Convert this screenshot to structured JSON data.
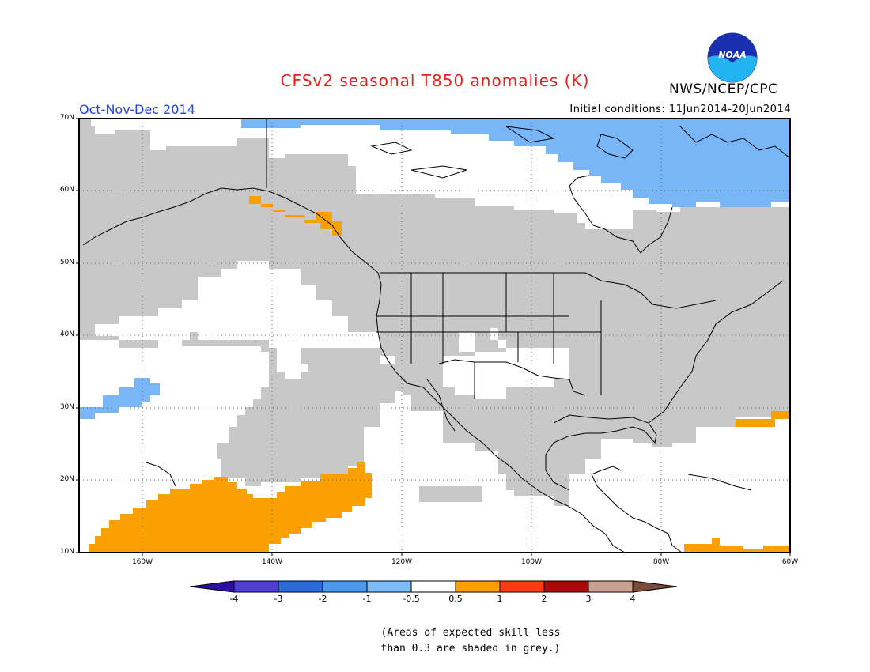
{
  "title": "CFSv2 seasonal T850 anomalies (K)",
  "season": "Oct-Nov-Dec 2014",
  "initial_conditions": "Initial conditions: 11Jun2014-20Jun2014",
  "agency": "NWS/NCEP/CPC",
  "logo_text": "NOAA",
  "lat_labels": [
    "70N",
    "60N",
    "50N",
    "40N",
    "30N",
    "20N",
    "10N"
  ],
  "lon_labels": [
    "160W",
    "140W",
    "120W",
    "100W",
    "80W",
    "60W"
  ],
  "colorbar": {
    "ticks": [
      "-4",
      "-3",
      "-2",
      "-1",
      "-0.5",
      "0.5",
      "1",
      "2",
      "3",
      "4"
    ],
    "colors": [
      "#2b0fa0",
      "#4e3fd0",
      "#2a6bd8",
      "#4b98ee",
      "#7dbcf6",
      "#ffffff",
      "#fba002",
      "#fb3c10",
      "#a80808",
      "#c8a090",
      "#7a4a3a"
    ]
  },
  "note_line1": "(Areas of expected skill less",
  "note_line2": "than 0.3 are shaded in grey.)",
  "colors": {
    "grey_skill": "#c8c8c8",
    "positive_anomaly": "#fba002",
    "negative_anomaly": "#78b6f8",
    "title": "#e8201a",
    "season": "#2040e8"
  }
}
